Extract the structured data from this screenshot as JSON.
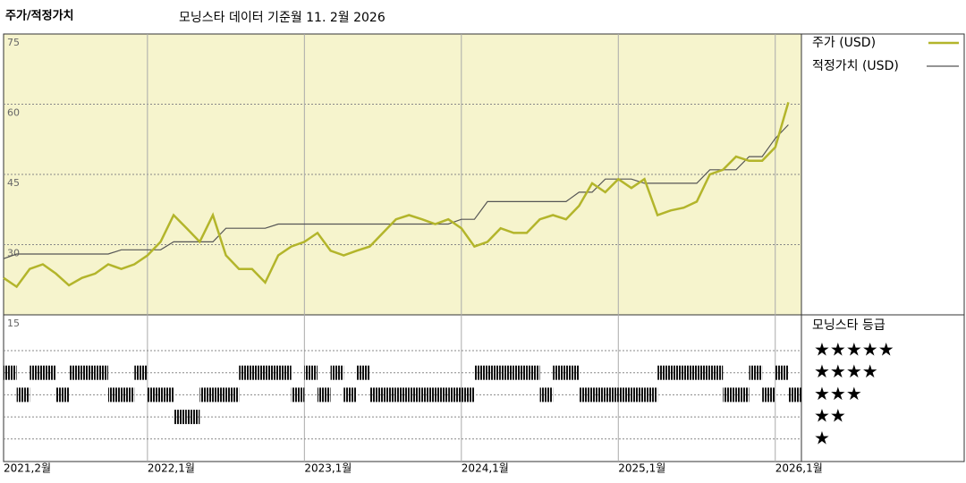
{
  "chart_data": {
    "type": "line",
    "title": "주가/적정가치",
    "subtitle": "모닝스타 데이터 기준월 11. 2월 2026",
    "x": [
      "2021-02",
      "2021-03",
      "2021-04",
      "2021-05",
      "2021-06",
      "2021-07",
      "2021-08",
      "2021-09",
      "2021-10",
      "2021-11",
      "2021-12",
      "2022-01",
      "2022-02",
      "2022-03",
      "2022-04",
      "2022-05",
      "2022-06",
      "2022-07",
      "2022-08",
      "2022-09",
      "2022-10",
      "2022-11",
      "2022-12",
      "2023-01",
      "2023-02",
      "2023-03",
      "2023-04",
      "2023-05",
      "2023-06",
      "2023-07",
      "2023-08",
      "2023-09",
      "2023-10",
      "2023-11",
      "2023-12",
      "2024-01",
      "2024-02",
      "2024-03",
      "2024-04",
      "2024-05",
      "2024-06",
      "2024-07",
      "2024-08",
      "2024-09",
      "2024-10",
      "2024-11",
      "2024-12",
      "2025-01",
      "2025-02",
      "2025-03",
      "2025-04",
      "2025-05",
      "2025-06",
      "2025-07",
      "2025-08",
      "2025-09",
      "2025-10",
      "2025-11",
      "2025-12",
      "2026-01",
      "2026-02"
    ],
    "xlim": [
      "2021-02",
      "2026-03"
    ],
    "xticks": [
      {
        "value": "2021-02",
        "label": "2021,2월"
      },
      {
        "value": "2022-01",
        "label": "2022,1월"
      },
      {
        "value": "2023-01",
        "label": "2023,1월"
      },
      {
        "value": "2024-01",
        "label": "2024,1월"
      },
      {
        "value": "2025-01",
        "label": "2025,1월"
      },
      {
        "value": "2026-01",
        "label": "2026,1월"
      }
    ],
    "ylim": [
      15,
      75
    ],
    "yticks": [
      75,
      60,
      45,
      30,
      15
    ],
    "grid": true,
    "series": [
      {
        "name": "주가 (USD)",
        "color": "#b3b52b",
        "values": [
          22.9,
          21,
          24.8,
          25.8,
          23.8,
          21.3,
          22.9,
          23.8,
          25.8,
          24.8,
          25.8,
          27.7,
          30.6,
          36.3,
          33.5,
          30.6,
          36.3,
          27.7,
          24.8,
          24.8,
          21.9,
          27.7,
          29.6,
          30.6,
          32.5,
          28.7,
          27.7,
          28.7,
          29.6,
          32.5,
          35.4,
          36.3,
          35.4,
          34.4,
          35.4,
          33.5,
          29.6,
          30.6,
          33.5,
          32.5,
          32.5,
          35.4,
          36.3,
          35.4,
          38.3,
          43.1,
          41.2,
          44,
          42.1,
          44,
          36.3,
          37.3,
          37.9,
          39.2,
          45,
          46,
          48.8,
          47.9,
          47.9,
          50.8,
          60.4
        ]
      },
      {
        "name": "적정가치 (USD)",
        "color": "#555555",
        "values": [
          27,
          28,
          28,
          28,
          28,
          28,
          28,
          28,
          28,
          28.9,
          28.9,
          28.9,
          28.9,
          30.6,
          30.6,
          30.6,
          30.6,
          33.5,
          33.5,
          33.5,
          33.5,
          34.4,
          34.4,
          34.4,
          34.4,
          34.4,
          34.4,
          34.4,
          34.4,
          34.4,
          34.4,
          34.4,
          34.4,
          34.4,
          34.4,
          35.4,
          35.4,
          39.2,
          39.2,
          39.2,
          39.2,
          39.2,
          39.2,
          39.2,
          41.2,
          41.2,
          44,
          44,
          44,
          43.1,
          43.1,
          43.1,
          43.1,
          43.1,
          46,
          46,
          46,
          48.8,
          48.8,
          52.7,
          55.6
        ]
      }
    ],
    "rating": {
      "title": "모닝스타 등급",
      "levels": [
        5,
        4,
        3,
        2,
        1
      ],
      "level_labels": [
        "★★★★★",
        "★★★★",
        "★★★",
        "★★",
        "★"
      ],
      "values": [
        4,
        3,
        4,
        4,
        3,
        4,
        4,
        4,
        3,
        3,
        4,
        3,
        3,
        2,
        2,
        3,
        3,
        3,
        4,
        4,
        4,
        4,
        3,
        4,
        3,
        4,
        3,
        4,
        3,
        3,
        3,
        3,
        3,
        3,
        3,
        3,
        4,
        4,
        4,
        4,
        4,
        3,
        4,
        4,
        3,
        3,
        3,
        3,
        3,
        3,
        4,
        4,
        4,
        4,
        4,
        3,
        3,
        4,
        3,
        4,
        3
      ]
    }
  }
}
